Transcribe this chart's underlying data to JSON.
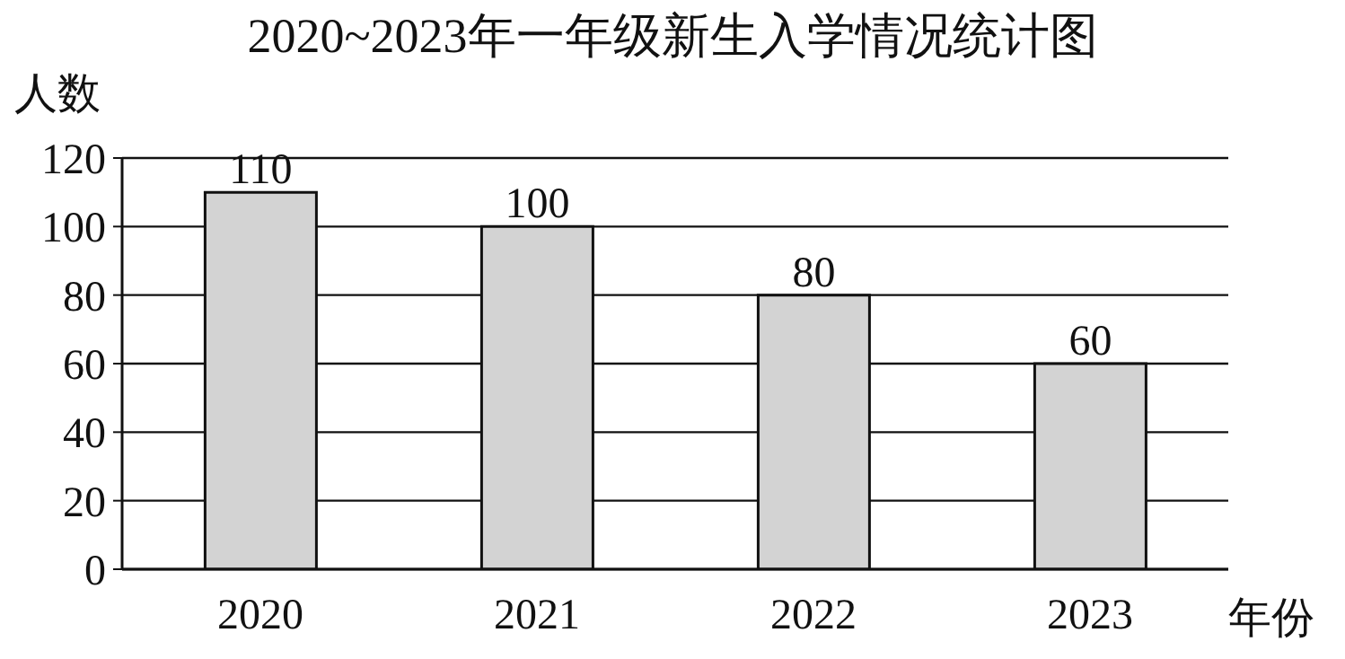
{
  "chart_data": {
    "type": "bar",
    "title": "2020~2023年一年级新生入学情况统计图",
    "xlabel": "年份",
    "ylabel": "人数",
    "categories": [
      "2020",
      "2021",
      "2022",
      "2023"
    ],
    "values": [
      110,
      100,
      80,
      60
    ],
    "color": "#d3d3d3",
    "ylim": [
      0,
      120
    ],
    "yticks": [
      0,
      20,
      40,
      60,
      80,
      100,
      120
    ],
    "grid": "y",
    "data_labels": true
  }
}
